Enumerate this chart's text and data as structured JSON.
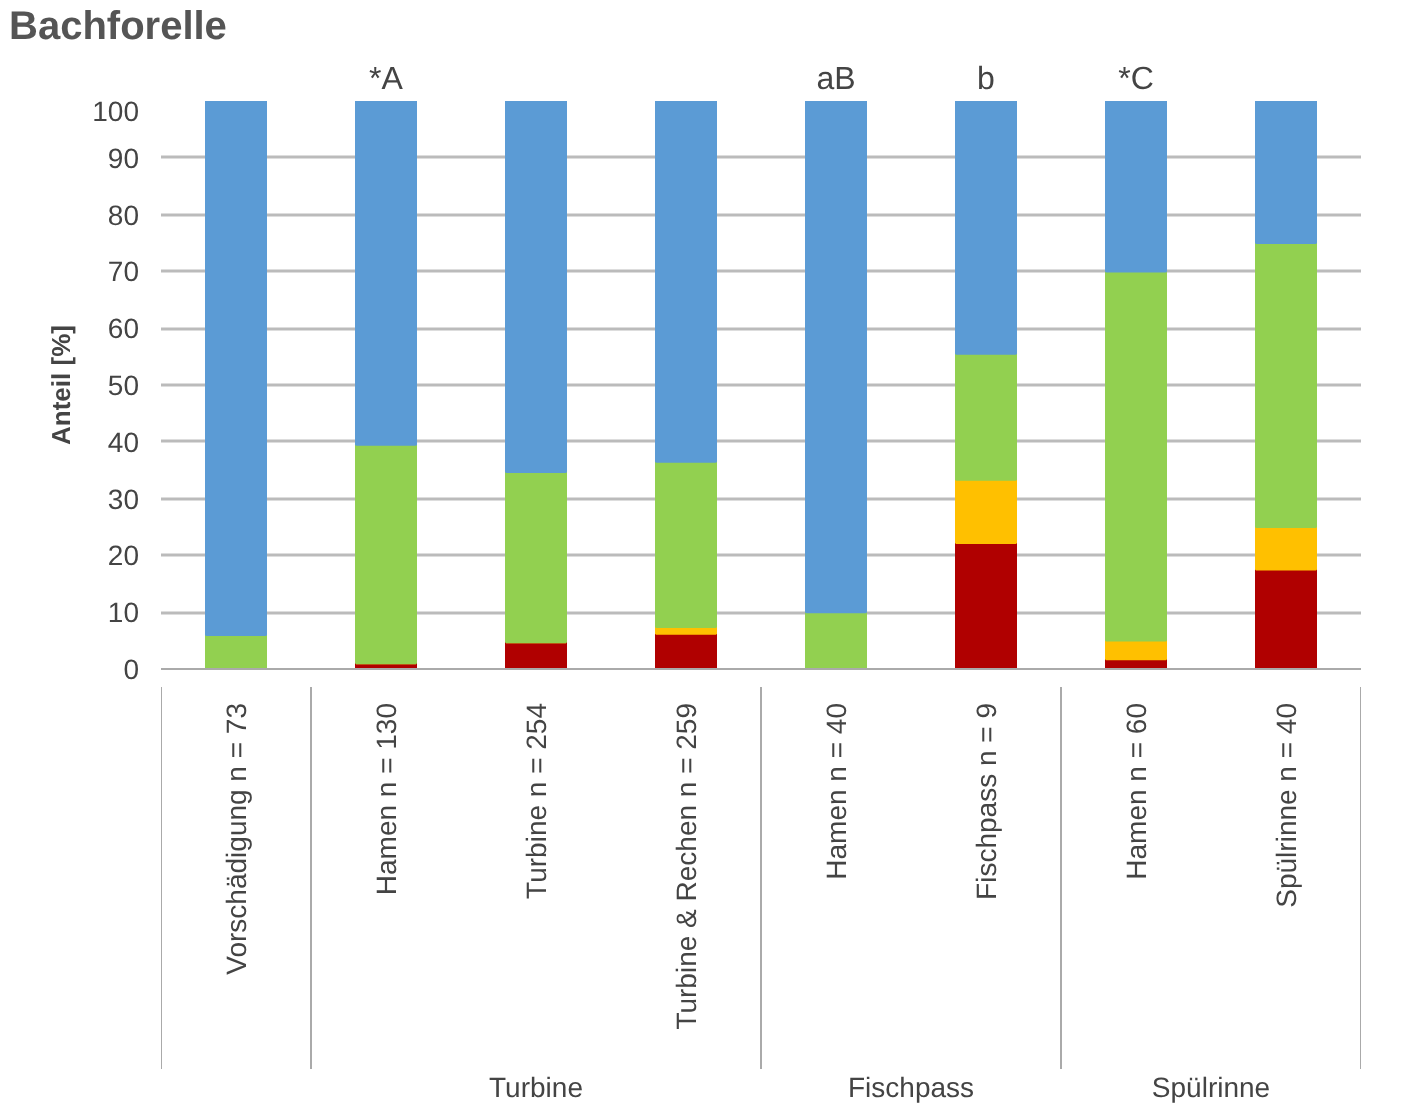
{
  "chart_data": {
    "type": "bar",
    "stacked": true,
    "title": "Bachforelle",
    "ylabel": "Anteil [%]",
    "categories": [
      "Vorschädigung n = 73",
      "Hamen n = 130",
      "Turbine n = 254",
      "Turbine & Rechen n = 259",
      "Hamen n = 40",
      "Fischpass n = 9",
      "Hamen n = 60",
      "Spülrinne n = 40"
    ],
    "series": [
      {
        "color": "#b00000",
        "values": [
          0,
          1,
          4.7,
          6.2,
          0,
          22.2,
          1.7,
          17.5
        ]
      },
      {
        "color": "#ffc000",
        "values": [
          0,
          0,
          0,
          1.2,
          0,
          11.1,
          3.3,
          7.5
        ]
      },
      {
        "color": "#92d050",
        "values": [
          6,
          38.5,
          30,
          29.1,
          10,
          22.2,
          65,
          50
        ]
      },
      {
        "color": "#5b9bd5",
        "values": [
          94,
          60.5,
          65.3,
          63.5,
          90,
          44.5,
          30,
          25
        ]
      }
    ],
    "ylim": [
      0,
      100
    ],
    "yticks": [
      0,
      10,
      20,
      30,
      40,
      50,
      60,
      70,
      80,
      90,
      100
    ],
    "grid": "y",
    "annotations": [
      {
        "text": "*A",
        "x": "Hamen n = 130",
        "y": 100
      },
      {
        "text": "aB",
        "x": "Hamen n = 40",
        "y": 100
      },
      {
        "text": "b",
        "x": "Fischpass n = 9",
        "y": 100
      },
      {
        "text": "*C",
        "x": "Hamen n = 60",
        "y": 100
      },
      "Turbine",
      "Fischpass",
      "Spülrinne"
    ]
  }
}
